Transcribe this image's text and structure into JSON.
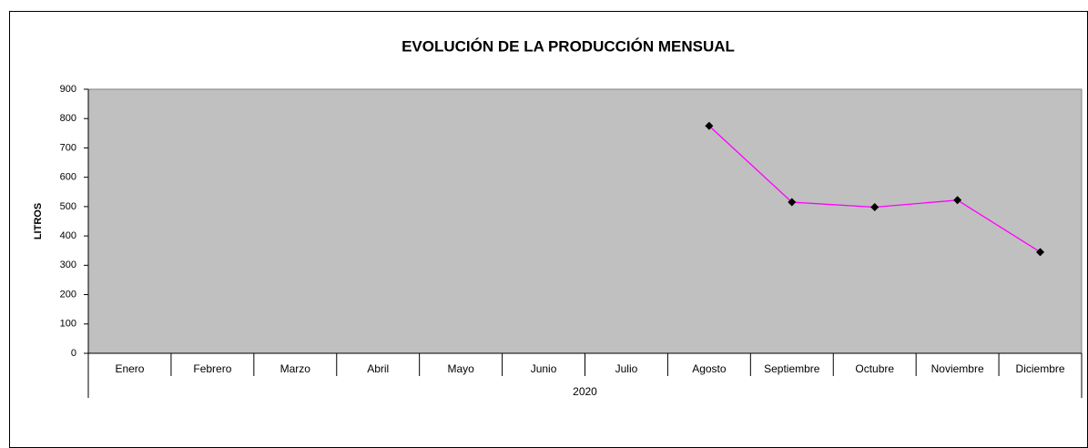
{
  "chart_data": {
    "type": "line",
    "title": "EVOLUCIÓN DE LA PRODUCCIÓN MENSUAL",
    "y_label": "LITROS",
    "group_label": "2020",
    "categories": [
      "Enero",
      "Febrero",
      "Marzo",
      "Abril",
      "Mayo",
      "Junio",
      "Julio",
      "Agosto",
      "Septiembre",
      "Octubre",
      "Noviembre",
      "Diciembre"
    ],
    "series": [
      {
        "color": "#ff00ff",
        "values": [
          null,
          null,
          null,
          null,
          null,
          null,
          null,
          775,
          515,
          498,
          522,
          345
        ]
      }
    ],
    "ylim": [
      0,
      900
    ],
    "yticks": [
      0,
      100,
      200,
      300,
      400,
      500,
      600,
      700,
      800,
      900
    ],
    "plot_background": "#c0c0c0"
  }
}
